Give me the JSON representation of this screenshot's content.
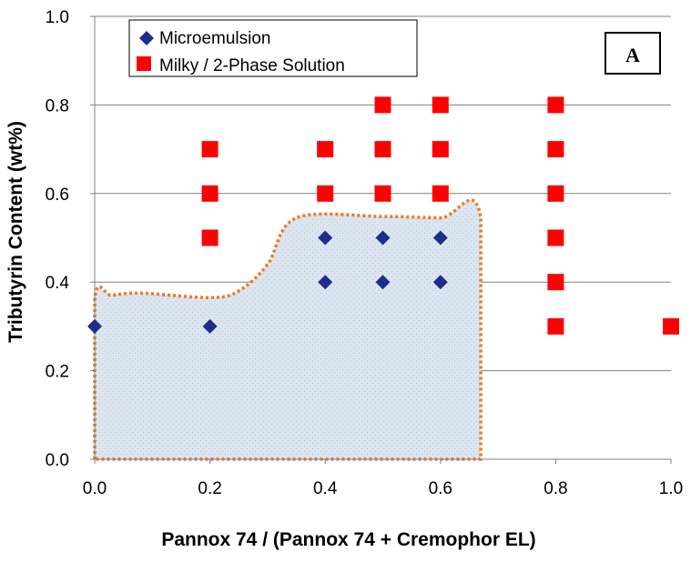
{
  "chart_data": {
    "type": "scatter",
    "xlabel": "Pannox 74 / (Pannox 74 + Cremophor EL)",
    "ylabel": "Tributyrin Content (wt%)",
    "xlim": [
      0.0,
      1.0
    ],
    "ylim": [
      0.0,
      1.0
    ],
    "x_ticks": [
      "0.0",
      "0.2",
      "0.4",
      "0.6",
      "0.8",
      "1.0"
    ],
    "y_ticks": [
      "0.0",
      "0.2",
      "0.4",
      "0.6",
      "0.8",
      "1.0"
    ],
    "grid": "horizontal",
    "legend_position": "top-left",
    "panel_label": "A",
    "series": [
      {
        "name": "Microemulsion",
        "marker": "diamond",
        "color": "#1F2D8C",
        "points": [
          {
            "x": 0.0,
            "y": 0.3
          },
          {
            "x": 0.2,
            "y": 0.3
          },
          {
            "x": 0.4,
            "y": 0.4
          },
          {
            "x": 0.4,
            "y": 0.5
          },
          {
            "x": 0.5,
            "y": 0.4
          },
          {
            "x": 0.5,
            "y": 0.5
          },
          {
            "x": 0.6,
            "y": 0.4
          },
          {
            "x": 0.6,
            "y": 0.5
          }
        ]
      },
      {
        "name": "Milky / 2-Phase Solution",
        "marker": "square",
        "color": "#FF0000",
        "points": [
          {
            "x": 0.2,
            "y": 0.5
          },
          {
            "x": 0.2,
            "y": 0.6
          },
          {
            "x": 0.2,
            "y": 0.7
          },
          {
            "x": 0.4,
            "y": 0.6
          },
          {
            "x": 0.4,
            "y": 0.7
          },
          {
            "x": 0.5,
            "y": 0.6
          },
          {
            "x": 0.5,
            "y": 0.7
          },
          {
            "x": 0.5,
            "y": 0.8
          },
          {
            "x": 0.6,
            "y": 0.6
          },
          {
            "x": 0.6,
            "y": 0.7
          },
          {
            "x": 0.6,
            "y": 0.8
          },
          {
            "x": 0.8,
            "y": 0.3
          },
          {
            "x": 0.8,
            "y": 0.4
          },
          {
            "x": 0.8,
            "y": 0.5
          },
          {
            "x": 0.8,
            "y": 0.6
          },
          {
            "x": 0.8,
            "y": 0.7
          },
          {
            "x": 0.8,
            "y": 0.8
          },
          {
            "x": 1.0,
            "y": 0.3
          }
        ]
      }
    ],
    "region": {
      "description": "microemulsion region",
      "fill": "#DCE6F0",
      "stroke": "#F07820",
      "vertices": [
        [
          0.0,
          0.0
        ],
        [
          0.0,
          0.36
        ],
        [
          0.03,
          0.37
        ],
        [
          0.08,
          0.375
        ],
        [
          0.2,
          0.365
        ],
        [
          0.25,
          0.38
        ],
        [
          0.3,
          0.44
        ],
        [
          0.35,
          0.545
        ],
        [
          0.5,
          0.548
        ],
        [
          0.6,
          0.545
        ],
        [
          0.67,
          0.545
        ],
        [
          0.67,
          0.0
        ]
      ]
    },
    "colors": {
      "grid": "#808080",
      "axis": "#808080"
    }
  }
}
